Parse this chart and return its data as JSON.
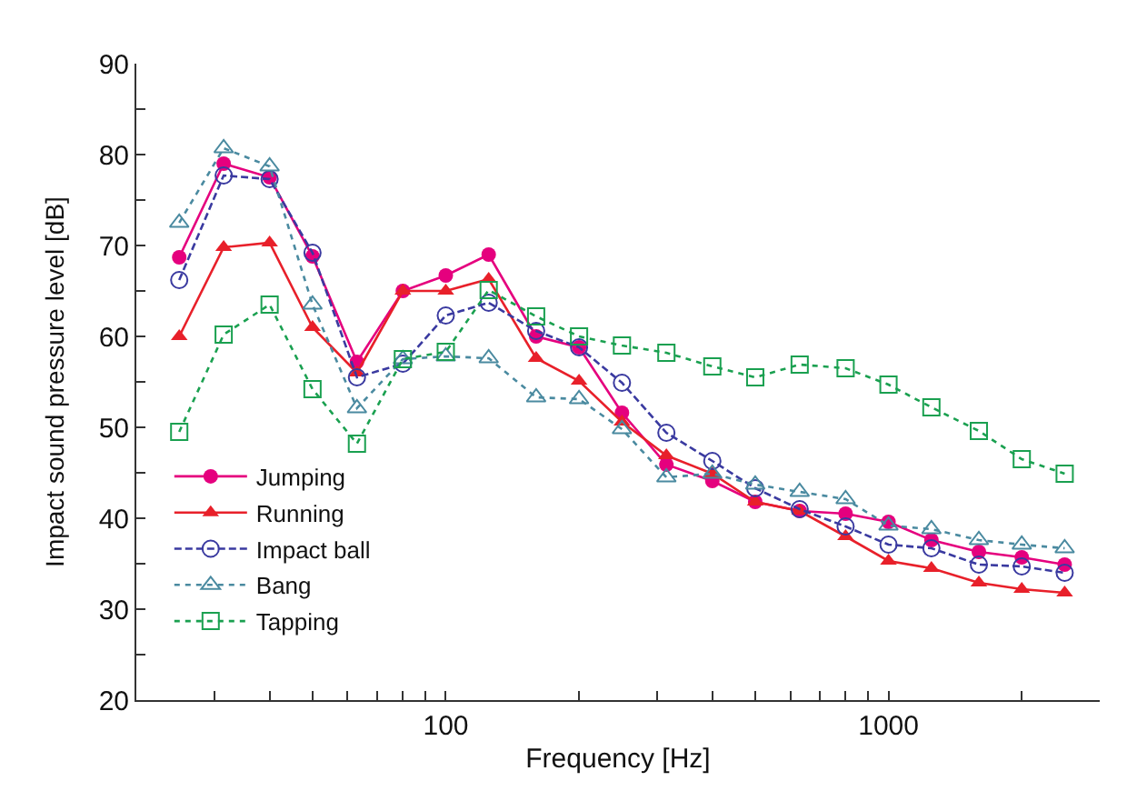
{
  "chart_data": {
    "type": "line",
    "xlabel": "Frequency [Hz]",
    "ylabel": "Impact sound pressure level [dB]",
    "x": [
      25,
      31.5,
      40,
      50,
      63,
      80,
      100,
      125,
      160,
      200,
      250,
      315,
      400,
      500,
      630,
      800,
      1000,
      1250,
      1600,
      2000,
      2500
    ],
    "log": "x",
    "xlim": [
      20,
      3000
    ],
    "ylim": [
      20,
      90
    ],
    "xticks": [
      {
        "value": 30,
        "label": null
      },
      {
        "value": 40,
        "label": null
      },
      {
        "value": 50,
        "label": null
      },
      {
        "value": 60,
        "label": null
      },
      {
        "value": 70,
        "label": null
      },
      {
        "value": 80,
        "label": null
      },
      {
        "value": 90,
        "label": null
      },
      100,
      {
        "value": 200,
        "label": null
      },
      {
        "value": 300,
        "label": null
      },
      {
        "value": 400,
        "label": null
      },
      {
        "value": 500,
        "label": null
      },
      {
        "value": 600,
        "label": null
      },
      {
        "value": 700,
        "label": null
      },
      {
        "value": 800,
        "label": null
      },
      {
        "value": 900,
        "label": null
      },
      1000,
      {
        "value": 2000,
        "label": null
      }
    ],
    "yticks": [
      20,
      {
        "value": 25,
        "label": null
      },
      30,
      {
        "value": 35,
        "label": null
      },
      40,
      {
        "value": 45,
        "label": null
      },
      50,
      {
        "value": 55,
        "label": null
      },
      60,
      {
        "value": 65,
        "label": null
      },
      70,
      {
        "value": 75,
        "label": null
      },
      80,
      {
        "value": 85,
        "label": null
      },
      90
    ],
    "legend": "bottom left",
    "series": [
      {
        "name": "Jumping",
        "color": "#e5007e",
        "marker": "circle",
        "line_style": "solid",
        "values": [
          68.7,
          79,
          77.5,
          68.8,
          57.2,
          65,
          66.7,
          69,
          60,
          58.8,
          51.6,
          45.9,
          44.1,
          41.8,
          40.8,
          40.5,
          39.6,
          37.6,
          36.3,
          35.7,
          34.9
        ]
      },
      {
        "name": "Running",
        "color": "#e8202a",
        "marker": "triangle",
        "line_style": "solid",
        "values": [
          60,
          69.8,
          70.3,
          61,
          56,
          65,
          65,
          66.3,
          57.6,
          55.1,
          50.6,
          46.9,
          44.9,
          41.8,
          40.8,
          38,
          35.3,
          34.5,
          32.9,
          32.2,
          31.8
        ]
      },
      {
        "name": "Impact ball",
        "color": "#3a3aa0",
        "marker": "circle",
        "line_style": "dashed",
        "values": [
          66.2,
          77.7,
          77.3,
          69.2,
          55.5,
          57,
          62.3,
          63.7,
          60.6,
          58.8,
          54.9,
          49.4,
          46.3,
          43.3,
          41,
          39.1,
          37.1,
          36.7,
          34.9,
          34.7,
          34
        ]
      },
      {
        "name": "Bang",
        "color": "#4a8aa0",
        "marker": "triangle",
        "line_style": "dotted",
        "values": [
          72.5,
          80.7,
          78.7,
          63.5,
          52.1,
          57.5,
          57.8,
          57.6,
          53.3,
          53.1,
          49.8,
          44.5,
          44.9,
          43.7,
          42.9,
          42.1,
          39.2,
          38.8,
          37.6,
          37.1,
          36.7
        ]
      },
      {
        "name": "Tapping",
        "color": "#1aa050",
        "marker": "square",
        "line_style": "dotted",
        "values": [
          49.5,
          60.2,
          63.5,
          54.2,
          48.2,
          57.5,
          58.3,
          65.1,
          62.2,
          60,
          59,
          58.2,
          56.7,
          55.5,
          56.9,
          56.5,
          54.7,
          52.2,
          49.6,
          46.5,
          44.9
        ]
      }
    ]
  }
}
